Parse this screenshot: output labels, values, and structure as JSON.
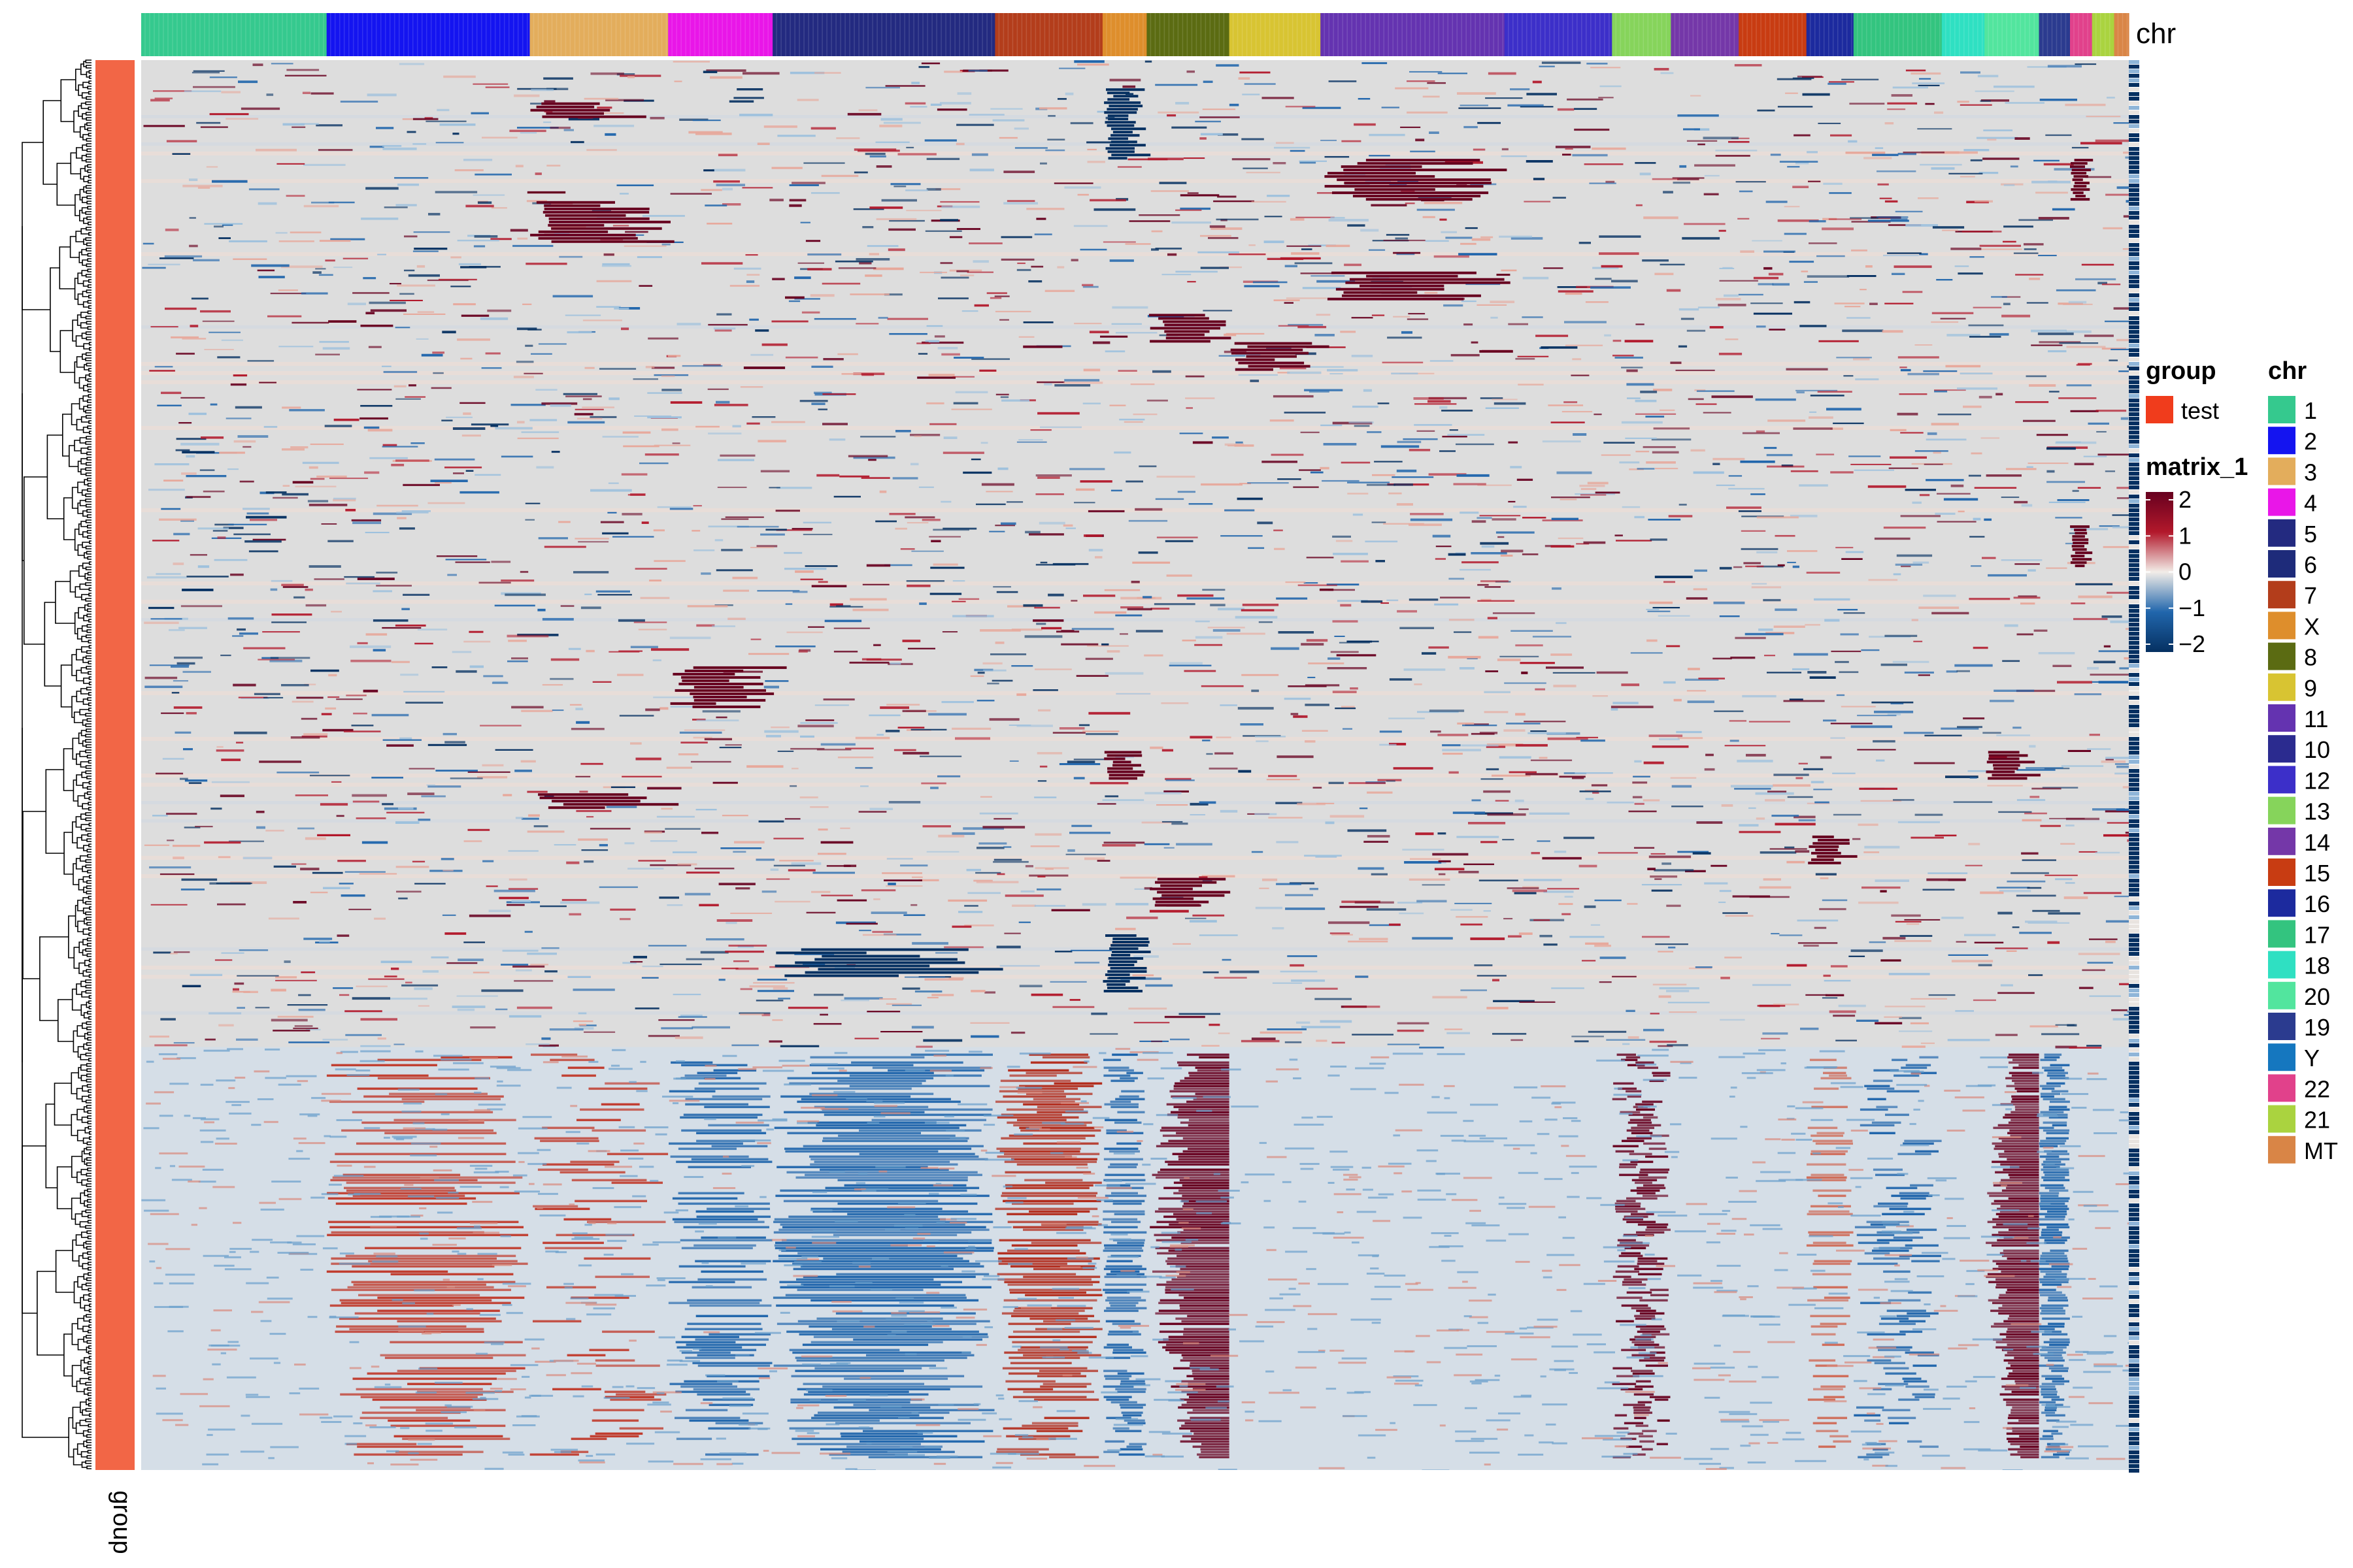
{
  "chart_data": {
    "type": "heatmap",
    "title": "",
    "column_annotation": {
      "name": "chr",
      "blocks": [
        {
          "chr": "1",
          "span": 0.0933
        },
        {
          "chr": "2",
          "span": 0.1022
        },
        {
          "chr": "3",
          "span": 0.0696
        },
        {
          "chr": "4",
          "span": 0.0526
        },
        {
          "chr": "5",
          "span": 0.1119
        },
        {
          "chr": "7",
          "span": 0.0541
        },
        {
          "chr": "X",
          "span": 0.0222
        },
        {
          "chr": "8",
          "span": 0.0415
        },
        {
          "chr": "9",
          "span": 0.0459
        },
        {
          "chr": "11",
          "span": 0.0926
        },
        {
          "chr": "12",
          "span": 0.0541
        },
        {
          "chr": "13",
          "span": 0.0296
        },
        {
          "chr": "14",
          "span": 0.0341
        },
        {
          "chr": "15",
          "span": 0.0341
        },
        {
          "chr": "16",
          "span": 0.0237
        },
        {
          "chr": "17",
          "span": 0.0444
        },
        {
          "chr": "18",
          "span": 0.0215
        },
        {
          "chr": "20",
          "span": 0.0274
        },
        {
          "chr": "19",
          "span": 0.0156
        },
        {
          "chr": "22",
          "span": 0.0111
        },
        {
          "chr": "21",
          "span": 0.0111
        },
        {
          "chr": "MT",
          "span": 0.0074
        }
      ]
    },
    "row_annotation": {
      "name": "group",
      "levels": [
        "test"
      ]
    },
    "cell_groups": [
      {
        "name": "upper",
        "fraction_of_rows": 0.7,
        "pattern": "mostly neutral with sparse scattered gains and losses"
      },
      {
        "name": "lower",
        "fraction_of_rows": 0.3,
        "pattern": "gains on chr 2, 3, 7, 8, 13, 20; losses on chr 4, 5, 17, 19"
      }
    ],
    "color_scale": {
      "name": "matrix_1",
      "breaks": [
        -2,
        -1,
        0,
        1,
        2
      ],
      "tick_labels": [
        "2",
        "1",
        "0",
        "−1",
        "−2"
      ]
    },
    "legend_placement": "right",
    "dendrogram": "rows"
  },
  "legends": {
    "group": {
      "title": "group",
      "items": [
        {
          "label": "test",
          "color": "#f03c1c"
        }
      ]
    },
    "chr": {
      "title": "chr",
      "items": [
        {
          "label": "1",
          "color": "#35c98e"
        },
        {
          "label": "2",
          "color": "#1414f0"
        },
        {
          "label": "3",
          "color": "#e3ad5c"
        },
        {
          "label": "4",
          "color": "#e916e8"
        },
        {
          "label": "5",
          "color": "#232a80"
        },
        {
          "label": "6",
          "color": "#1e2b7a"
        },
        {
          "label": "7",
          "color": "#b33d1b"
        },
        {
          "label": "X",
          "color": "#de8e2c"
        },
        {
          "label": "8",
          "color": "#5b6b12"
        },
        {
          "label": "9",
          "color": "#d8c432"
        },
        {
          "label": "11",
          "color": "#6433b0"
        },
        {
          "label": "10",
          "color": "#2b2b8f"
        },
        {
          "label": "12",
          "color": "#3c2fc9"
        },
        {
          "label": "13",
          "color": "#86d45b"
        },
        {
          "label": "14",
          "color": "#7437a8"
        },
        {
          "label": "15",
          "color": "#c83c12"
        },
        {
          "label": "16",
          "color": "#1c2a9e"
        },
        {
          "label": "17",
          "color": "#33c47f"
        },
        {
          "label": "18",
          "color": "#2fe0c2"
        },
        {
          "label": "20",
          "color": "#52e59e"
        },
        {
          "label": "19",
          "color": "#2b3b8f"
        },
        {
          "label": "Y",
          "color": "#1577bf"
        },
        {
          "label": "22",
          "color": "#e1418b"
        },
        {
          "label": "21",
          "color": "#aad33f"
        },
        {
          "label": "MT",
          "color": "#d98546"
        }
      ]
    }
  },
  "colors": {
    "high": "#67001f",
    "high_mid": "#b2182b",
    "low_mid": "#2166ac",
    "low": "#053061",
    "neutral": "#dddddd",
    "group_bar": "#f26646"
  }
}
